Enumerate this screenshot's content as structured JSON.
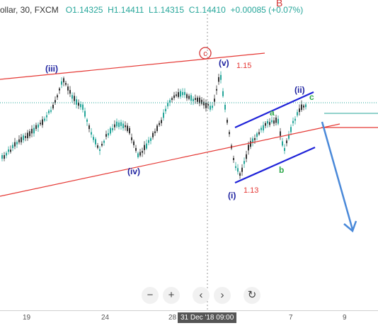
{
  "header": {
    "symbol": "ollar, 30, FXCM",
    "open_label": "O",
    "open_value": "1.14325",
    "high_label": "H",
    "high_value": "1.14411",
    "low_label": "L",
    "low_value": "1.14315",
    "close_label": "C",
    "close_value": "1.14410",
    "change": "+0.00085 (+0.07%)"
  },
  "top_marker": "B",
  "wave_labels": {
    "iii": "(iii)",
    "iv": "(iv)",
    "v": "(v)",
    "i": "(i)",
    "ii": "(ii)",
    "c_circle": "c",
    "a": "a",
    "b": "b",
    "c_small": "c",
    "fib_115": "1.15",
    "fib_113": "1.13"
  },
  "toolbar": {
    "zoom_out": "−",
    "zoom_in": "+",
    "back": "‹",
    "forward": "›",
    "reset": "↻"
  },
  "x_axis": {
    "ticks": [
      "19",
      "24",
      "28",
      "7",
      "9"
    ],
    "crosshair_label": "31 Dec '18   09:00"
  },
  "colors": {
    "up": "#26a69a",
    "down": "#333333",
    "trend": "#e53935",
    "channel": "#1e22d8",
    "target": "#4a89d9"
  },
  "chart_data": {
    "type": "candlestick",
    "symbol": "ollar",
    "timeframe": "30",
    "last_bar": {
      "open": 1.14325,
      "high": 1.14411,
      "low": 1.14315,
      "close": 1.1441
    },
    "annotations": [
      "(iii)",
      "(iv)",
      "(v)",
      "(i)",
      "(ii)",
      "c",
      "a",
      "b",
      "1.15",
      "1.13",
      "B"
    ],
    "x_tick_labels": [
      "19",
      "24",
      "28",
      "31 Dec '18 09:00",
      "7",
      "9"
    ]
  }
}
